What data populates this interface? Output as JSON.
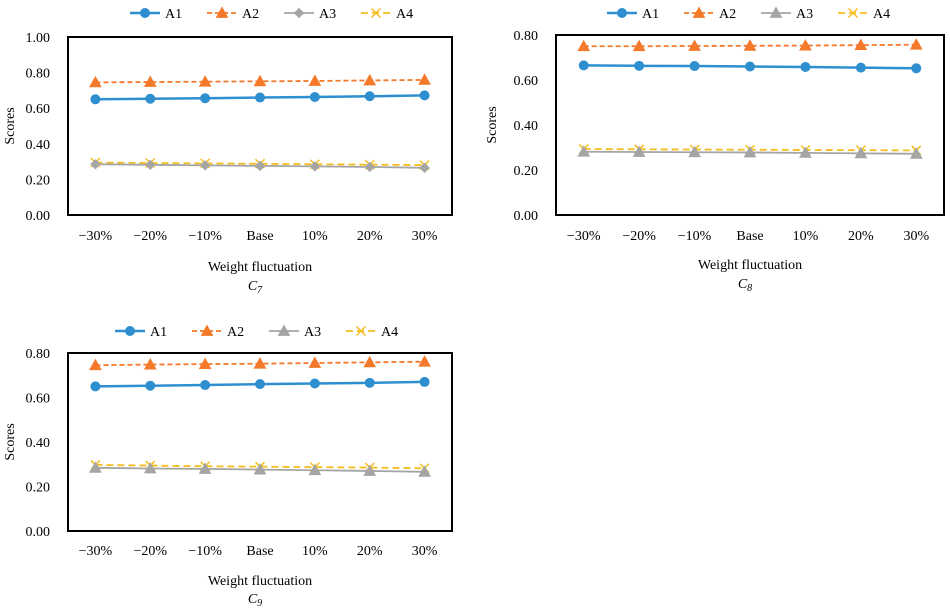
{
  "chart_data": [
    {
      "type": "line",
      "caption": "C",
      "caption_sub": "7",
      "xlabel": "Weight fluctuation",
      "ylabel": "Scores",
      "categories": [
        "−30%",
        "−20%",
        "−10%",
        "Base",
        "10%",
        "20%",
        "30%"
      ],
      "ylim": [
        0,
        1.0
      ],
      "yticks": [
        "0.00",
        "0.20",
        "0.40",
        "0.60",
        "0.80",
        "1.00"
      ],
      "series": [
        {
          "name": "A1",
          "marker": "circle",
          "values": [
            0.65,
            0.653,
            0.656,
            0.66,
            0.663,
            0.667,
            0.672
          ]
        },
        {
          "name": "A2",
          "marker": "triangle",
          "values": [
            0.745,
            0.747,
            0.749,
            0.751,
            0.753,
            0.756,
            0.759
          ]
        },
        {
          "name": "A3",
          "marker": "diamond",
          "values": [
            0.285,
            0.282,
            0.279,
            0.276,
            0.273,
            0.27,
            0.265
          ]
        },
        {
          "name": "A4",
          "marker": "x",
          "values": [
            0.295,
            0.292,
            0.29,
            0.288,
            0.285,
            0.283,
            0.28
          ]
        }
      ]
    },
    {
      "type": "line",
      "caption": "C",
      "caption_sub": "8",
      "xlabel": "Weight fluctuation",
      "ylabel": "Scores",
      "categories": [
        "−30%",
        "−20%",
        "−10%",
        "Base",
        "10%",
        "20%",
        "30%"
      ],
      "ylim": [
        0,
        0.8
      ],
      "yticks": [
        "0.00",
        "0.20",
        "0.40",
        "0.60",
        "0.80"
      ],
      "series": [
        {
          "name": "A1",
          "marker": "circle",
          "values": [
            0.665,
            0.663,
            0.662,
            0.66,
            0.658,
            0.655,
            0.652
          ]
        },
        {
          "name": "A2",
          "marker": "triangle",
          "values": [
            0.75,
            0.75,
            0.751,
            0.752,
            0.753,
            0.755,
            0.757
          ]
        },
        {
          "name": "A3",
          "marker": "triangle",
          "values": [
            0.281,
            0.28,
            0.279,
            0.278,
            0.276,
            0.274,
            0.272
          ]
        },
        {
          "name": "A4",
          "marker": "x",
          "values": [
            0.293,
            0.292,
            0.291,
            0.29,
            0.289,
            0.288,
            0.287
          ]
        }
      ]
    },
    {
      "type": "line",
      "caption": "C",
      "caption_sub": "9",
      "xlabel": "Weight fluctuation",
      "ylabel": "Scores",
      "categories": [
        "−30%",
        "−20%",
        "−10%",
        "Base",
        "10%",
        "20%",
        "30%"
      ],
      "ylim": [
        0,
        0.8
      ],
      "yticks": [
        "0.00",
        "0.20",
        "0.40",
        "0.60",
        "0.80"
      ],
      "series": [
        {
          "name": "A1",
          "marker": "circle",
          "values": [
            0.65,
            0.653,
            0.656,
            0.66,
            0.663,
            0.666,
            0.67
          ]
        },
        {
          "name": "A2",
          "marker": "triangle",
          "values": [
            0.745,
            0.748,
            0.75,
            0.752,
            0.755,
            0.758,
            0.761
          ]
        },
        {
          "name": "A3",
          "marker": "triangle",
          "values": [
            0.284,
            0.281,
            0.279,
            0.276,
            0.273,
            0.27,
            0.266
          ]
        },
        {
          "name": "A4",
          "marker": "x",
          "values": [
            0.297,
            0.294,
            0.291,
            0.289,
            0.287,
            0.285,
            0.282
          ]
        }
      ]
    }
  ],
  "colors": {
    "A1": "#2E8FD0",
    "A2": "#F4792B",
    "A3": "#A5A5A5",
    "A4": "#F5BD1F",
    "frame": "#000000"
  }
}
